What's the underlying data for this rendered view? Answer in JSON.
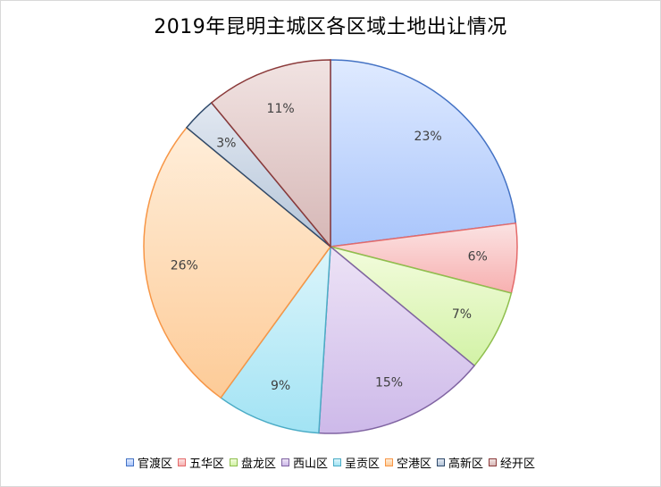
{
  "chart_data": {
    "type": "pie",
    "title": "2019年昆明主城区各区域土地出让情况",
    "legend_position": "bottom",
    "categories": [
      "官渡区",
      "五华区",
      "盘龙区",
      "西山区",
      "呈贡区",
      "空港区",
      "高新区",
      "经开区"
    ],
    "values": [
      23,
      6,
      7,
      15,
      9,
      26,
      3,
      11
    ],
    "labels": [
      "23%",
      "6%",
      "7%",
      "15%",
      "9%",
      "26%",
      "3%",
      "11%"
    ],
    "colors": {
      "fill_light": [
        "#dfeaff",
        "#fbe3e3",
        "#f3fcdd",
        "#ede3f6",
        "#dcf5fb",
        "#ffeeda",
        "#e2e8f1",
        "#f1e3e2"
      ],
      "fill_dark": [
        "#a9c5fb",
        "#f7b0b0",
        "#d2f2a6",
        "#cdb9e9",
        "#a2e3f4",
        "#fdcb97",
        "#b3c4d8",
        "#d6b7b6"
      ],
      "stroke": [
        "#4472c4",
        "#e46b6b",
        "#8fbf4e",
        "#8064a2",
        "#4bacc6",
        "#f79646",
        "#2f4a6b",
        "#8b3a3a"
      ]
    }
  }
}
